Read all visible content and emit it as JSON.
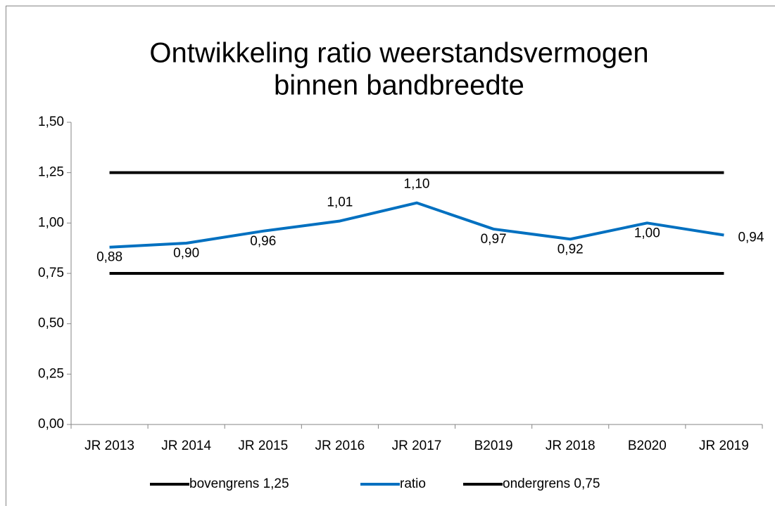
{
  "chart_data": {
    "type": "line",
    "title": [
      "Ontwikkeling ratio weerstandsvermogen",
      "binnen bandbreedte"
    ],
    "categories": [
      "JR 2013",
      "JR 2014",
      "JR 2015",
      "JR 2016",
      "JR 2017",
      "B2019",
      "JR 2018",
      "B2020",
      "JR 2019"
    ],
    "series": [
      {
        "name": "bovengrens 1,25",
        "color": "#000000",
        "values": [
          1.25,
          1.25,
          1.25,
          1.25,
          1.25,
          1.25,
          1.25,
          1.25,
          1.25
        ]
      },
      {
        "name": "ratio",
        "color": "#0070c0",
        "values": [
          0.88,
          0.9,
          0.96,
          1.01,
          1.1,
          0.97,
          0.92,
          1.0,
          0.94
        ],
        "value_labels": [
          "0,88",
          "0,90",
          "0,96",
          "1,01",
          "1,10",
          "0,97",
          "0,92",
          "1,00",
          "0,94"
        ]
      },
      {
        "name": "ondergrens 0,75",
        "color": "#000000",
        "values": [
          0.75,
          0.75,
          0.75,
          0.75,
          0.75,
          0.75,
          0.75,
          0.75,
          0.75
        ]
      }
    ],
    "ylim": [
      0,
      1.5
    ],
    "yticks": [
      {
        "value": 0,
        "label": "0,00"
      },
      {
        "value": 0.25,
        "label": "0,25"
      },
      {
        "value": 0.5,
        "label": "0,50"
      },
      {
        "value": 0.75,
        "label": "0,75"
      },
      {
        "value": 1.0,
        "label": "1,00"
      },
      {
        "value": 1.25,
        "label": "1,25"
      },
      {
        "value": 1.5,
        "label": "1,50"
      }
    ],
    "legend": "bottom"
  }
}
